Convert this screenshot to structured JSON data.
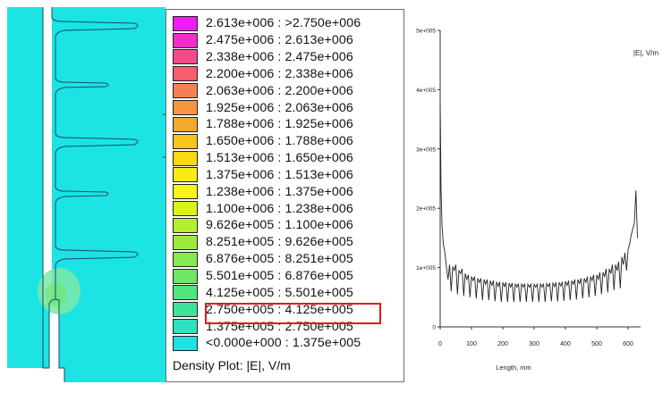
{
  "legend": {
    "caption": "Density Plot: |E|, V/m",
    "rows": [
      {
        "label": "2.613e+006 : >2.750e+006",
        "color": "#f01cf0"
      },
      {
        "label": "2.475e+006 : 2.613e+006",
        "color": "#f22ccc"
      },
      {
        "label": "2.338e+006 : 2.475e+006",
        "color": "#f54a8c"
      },
      {
        "label": "2.200e+006 : 2.338e+006",
        "color": "#f65e70"
      },
      {
        "label": "2.063e+006 : 2.200e+006",
        "color": "#f58055"
      },
      {
        "label": "1.925e+006 : 2.063e+006",
        "color": "#f5963c"
      },
      {
        "label": "1.788e+006 : 1.925e+006",
        "color": "#f5a830"
      },
      {
        "label": "1.650e+006 : 1.788e+006",
        "color": "#f8c41a"
      },
      {
        "label": "1.513e+006 : 1.650e+006",
        "color": "#f8d812"
      },
      {
        "label": "1.375e+006 : 1.513e+006",
        "color": "#f8ea12"
      },
      {
        "label": "1.238e+006 : 1.375e+006",
        "color": "#f6f612"
      },
      {
        "label": "1.100e+006 : 1.238e+006",
        "color": "#d8f21a"
      },
      {
        "label": "9.626e+005 : 1.100e+006",
        "color": "#b4ee30"
      },
      {
        "label": "8.251e+005 : 9.626e+005",
        "color": "#9ceb3c"
      },
      {
        "label": "6.876e+005 : 8.251e+005",
        "color": "#86e952"
      },
      {
        "label": "5.501e+005 : 6.876e+005",
        "color": "#6ee666"
      },
      {
        "label": "4.125e+005 : 5.501e+005",
        "color": "#54e47e"
      },
      {
        "label": "2.750e+005 : 4.125e+005",
        "color": "#3ee298"
      },
      {
        "label": "1.375e+005 : 2.750e+005",
        "color": "#2ee0c0"
      },
      {
        "label": "<0.000e+000 : 1.375e+005",
        "color": "#1ce4e4"
      }
    ],
    "highlighted_row": "2.750e+005 : 4.125e+005",
    "highlight_color": "#e3161c"
  },
  "geometry": {
    "fill_color": "#1ce4e4",
    "hotspot_color": "#7ee8a8"
  },
  "chart_data": {
    "type": "line",
    "title": "",
    "series_label": "|E|, V/m",
    "xlabel": "Length, mm",
    "ylabel": "",
    "xlim": [
      0,
      640
    ],
    "ylim": [
      0,
      500000
    ],
    "x_ticks": [
      "0",
      "100",
      "200",
      "300",
      "400",
      "500",
      "600"
    ],
    "y_ticks": [
      "0",
      "1e+005",
      "2e+005",
      "3e+005",
      "4e+005",
      "5e+005"
    ],
    "x": [
      0,
      3,
      6,
      10,
      15,
      20,
      25,
      30,
      35,
      40,
      45,
      50,
      55,
      60,
      65,
      70,
      75,
      80,
      85,
      90,
      95,
      100,
      105,
      110,
      115,
      120,
      125,
      130,
      135,
      140,
      145,
      150,
      155,
      160,
      165,
      170,
      175,
      180,
      185,
      190,
      195,
      200,
      205,
      210,
      215,
      220,
      225,
      230,
      235,
      240,
      245,
      250,
      255,
      260,
      265,
      270,
      275,
      280,
      285,
      290,
      295,
      300,
      305,
      310,
      315,
      320,
      325,
      330,
      335,
      340,
      345,
      350,
      355,
      360,
      365,
      370,
      375,
      380,
      385,
      390,
      395,
      400,
      405,
      410,
      415,
      420,
      425,
      430,
      435,
      440,
      445,
      450,
      455,
      460,
      465,
      470,
      475,
      480,
      485,
      490,
      495,
      500,
      505,
      510,
      515,
      520,
      525,
      530,
      535,
      540,
      545,
      550,
      555,
      560,
      565,
      570,
      575,
      580,
      585,
      590,
      595,
      600,
      605,
      610,
      615,
      620,
      625,
      630
    ],
    "y": [
      380000,
      230000,
      170000,
      140000,
      125000,
      100000,
      80000,
      105000,
      60000,
      102000,
      95000,
      105000,
      55000,
      95000,
      90000,
      98000,
      52000,
      90000,
      80000,
      88000,
      50000,
      85000,
      78000,
      85000,
      48000,
      82000,
      75000,
      82000,
      45000,
      80000,
      72000,
      80000,
      45000,
      78000,
      70000,
      78000,
      43000,
      76000,
      68000,
      76000,
      42000,
      75000,
      68000,
      75000,
      42000,
      74000,
      67000,
      74000,
      42000,
      73000,
      67000,
      73000,
      42000,
      73000,
      67000,
      73000,
      42000,
      72000,
      67000,
      72000,
      42000,
      72000,
      67000,
      72000,
      42000,
      73000,
      67000,
      73000,
      42000,
      73000,
      68000,
      74000,
      43000,
      74000,
      68000,
      75000,
      43000,
      75000,
      69000,
      76000,
      44000,
      77000,
      70000,
      78000,
      45000,
      78000,
      72000,
      80000,
      46000,
      80000,
      73000,
      82000,
      48000,
      82000,
      75000,
      85000,
      50000,
      85000,
      78000,
      88000,
      52000,
      88000,
      80000,
      92000,
      55000,
      92000,
      85000,
      98000,
      58000,
      98000,
      90000,
      105000,
      62000,
      105000,
      95000,
      110000,
      65000,
      118000,
      105000,
      125000,
      95000,
      130000,
      140000,
      155000,
      165000,
      175000,
      230000,
      150000
    ]
  }
}
